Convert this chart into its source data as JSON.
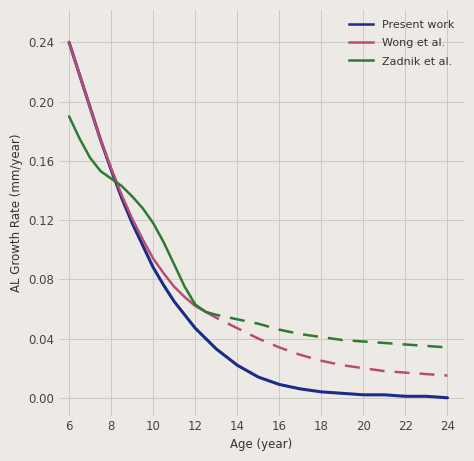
{
  "xlabel": "Age (year)",
  "ylabel": "AL Growth Rate (mm/year)",
  "xlim": [
    5.5,
    24.8
  ],
  "ylim": [
    -0.012,
    0.262
  ],
  "xticks": [
    6,
    8,
    10,
    12,
    14,
    16,
    18,
    20,
    22,
    24
  ],
  "yticks": [
    0,
    0.04,
    0.08,
    0.12,
    0.16,
    0.2,
    0.24
  ],
  "background_color": "#edeae5",
  "grid_color": "#c8c5c0",
  "legend_labels": [
    "Present work",
    "Wong et al.",
    "Zadnik et al."
  ],
  "colors": {
    "present": "#1a2b8a",
    "wong": "#b84c72",
    "zadnik": "#2d7a35"
  },
  "present_work": {
    "ages": [
      6.0,
      6.5,
      7.0,
      7.5,
      8.0,
      8.5,
      9.0,
      9.5,
      10.0,
      10.5,
      11.0,
      11.5,
      12.0,
      12.5,
      13.0,
      14.0,
      15.0,
      16.0,
      17.0,
      18.0,
      19.0,
      20.0,
      21.0,
      22.0,
      23.0,
      24.0
    ],
    "values": [
      0.24,
      0.218,
      0.196,
      0.174,
      0.154,
      0.135,
      0.118,
      0.103,
      0.088,
      0.076,
      0.065,
      0.056,
      0.047,
      0.04,
      0.033,
      0.022,
      0.014,
      0.009,
      0.006,
      0.004,
      0.003,
      0.002,
      0.002,
      0.001,
      0.001,
      0.0
    ]
  },
  "wong_solid": {
    "ages": [
      6.0,
      6.5,
      7.0,
      7.5,
      8.0,
      8.5,
      9.0,
      9.5,
      10.0,
      10.5,
      11.0,
      11.5,
      12.0,
      12.5
    ],
    "values": [
      0.24,
      0.218,
      0.196,
      0.174,
      0.155,
      0.137,
      0.121,
      0.107,
      0.094,
      0.084,
      0.075,
      0.068,
      0.062,
      0.058
    ]
  },
  "wong_dashed": {
    "ages": [
      12.5,
      13.0,
      14.0,
      15.0,
      16.0,
      17.0,
      18.0,
      19.0,
      20.0,
      21.0,
      22.0,
      23.0,
      24.0
    ],
    "values": [
      0.058,
      0.054,
      0.047,
      0.04,
      0.034,
      0.029,
      0.025,
      0.022,
      0.02,
      0.018,
      0.017,
      0.016,
      0.015
    ]
  },
  "zadnik_solid": {
    "ages": [
      6.0,
      6.5,
      7.0,
      7.5,
      8.0,
      8.5,
      9.0,
      9.5,
      10.0,
      10.5,
      11.0,
      11.5,
      12.0,
      12.5
    ],
    "values": [
      0.19,
      0.175,
      0.162,
      0.153,
      0.148,
      0.143,
      0.136,
      0.128,
      0.118,
      0.105,
      0.09,
      0.075,
      0.063,
      0.058
    ]
  },
  "zadnik_dashed": {
    "ages": [
      12.5,
      13.0,
      14.0,
      15.0,
      16.0,
      17.0,
      18.0,
      19.0,
      20.0,
      21.0,
      22.0,
      23.0,
      24.0
    ],
    "values": [
      0.058,
      0.056,
      0.053,
      0.05,
      0.046,
      0.043,
      0.041,
      0.039,
      0.038,
      0.037,
      0.036,
      0.035,
      0.034
    ]
  }
}
